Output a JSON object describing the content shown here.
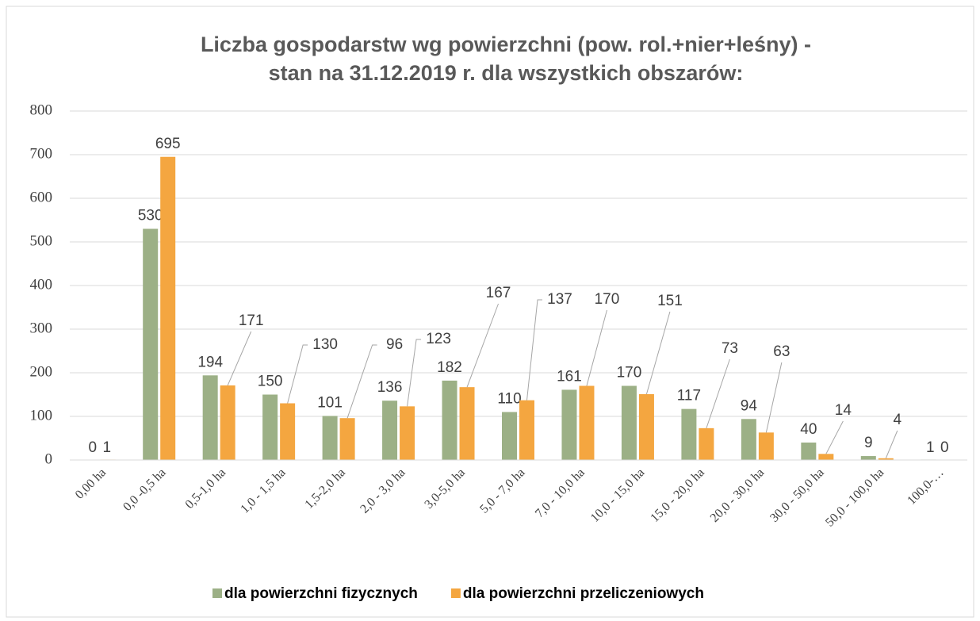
{
  "chart_data": {
    "type": "bar",
    "title": [
      "Liczba gospodarstw wg powierzchni (pow. rol.+nier+leśny) -",
      "stan na 31.12.2019 r. dla wszystkich obszarów:"
    ],
    "categories": [
      "0,00 ha",
      "0,0 -0,5 ha",
      "0,5-1,0 ha",
      "1,0 - 1,5 ha",
      "1,5-2,0 ha",
      "2,0 - 3,0 ha",
      "3,0-5,0 ha",
      "5,0 - 7,0 ha",
      "7,0 - 10,0 ha",
      "10,0 - 15,0 ha",
      "15,0 - 20,0 ha",
      "20,0 - 30,0 ha",
      "30,0 - 50,0 ha",
      "50,0 - 100,0 ha",
      "100,0-…"
    ],
    "series": [
      {
        "name": "dla powierzchni fizycznych",
        "color": "#9cb086",
        "values": [
          0,
          530,
          194,
          150,
          101,
          136,
          182,
          110,
          161,
          170,
          117,
          94,
          40,
          9,
          1
        ]
      },
      {
        "name": "dla powierzchni przeliczeniowych",
        "color": "#f4a640",
        "values": [
          1,
          695,
          171,
          130,
          96,
          123,
          167,
          137,
          170,
          151,
          73,
          63,
          14,
          4,
          0
        ]
      }
    ],
    "ylim": [
      0,
      800
    ],
    "yticks": [
      0,
      100,
      200,
      300,
      400,
      500,
      600,
      700,
      800
    ],
    "grid": true,
    "legend": "bottom"
  }
}
